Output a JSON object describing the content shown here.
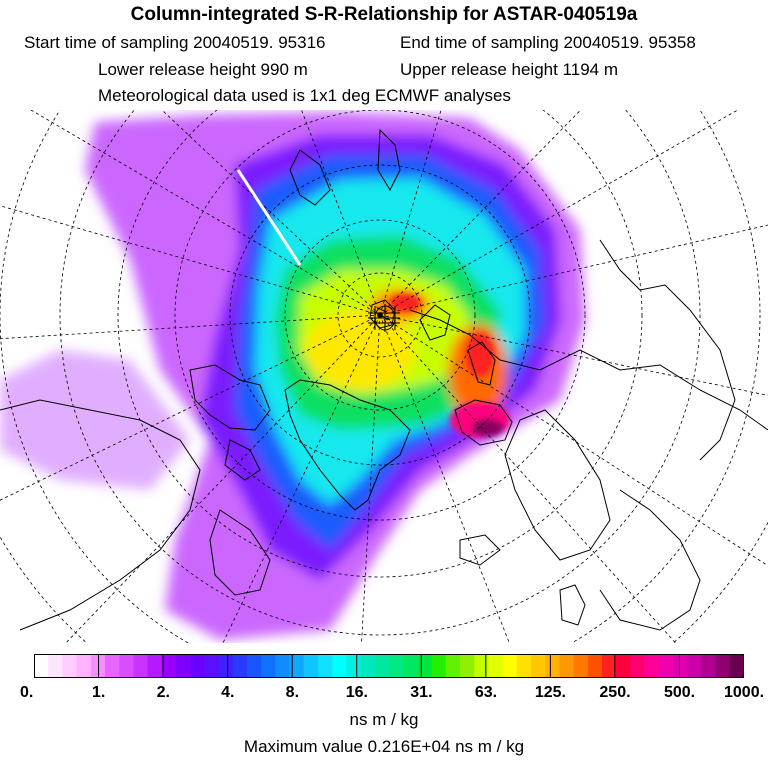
{
  "header": {
    "title": "Column-integrated S-R-Relationship for ASTAR-040519a",
    "start_time": "Start time of sampling 20040519. 95316",
    "end_time": "End time of sampling 20040519. 95358",
    "lower_height": "Lower release height  990 m",
    "upper_height": "Upper release height 1194 m",
    "met_data": "Meteorological data used is 1x1 deg ECMWF analyses"
  },
  "map": {
    "projection": "polar stereographic (North Pole)",
    "field": "column-integrated source-receptor sensitivity",
    "maximum_location": "near Svalbard / Barents Sea"
  },
  "colorbar": {
    "ticks": [
      "0.",
      "1.",
      "2.",
      "4.",
      "8.",
      "16.",
      "31.",
      "63.",
      "125.",
      "250.",
      "500.",
      "1000."
    ],
    "colors": [
      "#ffffff",
      "#ffe6ff",
      "#ffccff",
      "#ffb3ff",
      "#f58cff",
      "#e866ff",
      "#d94dff",
      "#c933ff",
      "#b31aff",
      "#9900ff",
      "#8000ff",
      "#6a00ff",
      "#5a10ff",
      "#4020ff",
      "#2a3aff",
      "#1a55ff",
      "#1070ff",
      "#108cff",
      "#10a8ff",
      "#10c4ff",
      "#10e0ff",
      "#00ffff",
      "#00f0e0",
      "#00e8c0",
      "#00e8a0",
      "#00e880",
      "#00e860",
      "#00e840",
      "#20f000",
      "#60f000",
      "#90f000",
      "#c0ff00",
      "#e0ff00",
      "#ffff00",
      "#ffe000",
      "#ffc800",
      "#ffb000",
      "#ff9800",
      "#ff7800",
      "#ff5000",
      "#ff2020",
      "#ff0040",
      "#ff0070",
      "#ff0099",
      "#f000aa",
      "#e000b0",
      "#cc00a8",
      "#b00090",
      "#900070",
      "#6a0050"
    ],
    "units": "ns m / kg",
    "max_value": "Maximum value  0.216E+04 ns m / kg"
  }
}
